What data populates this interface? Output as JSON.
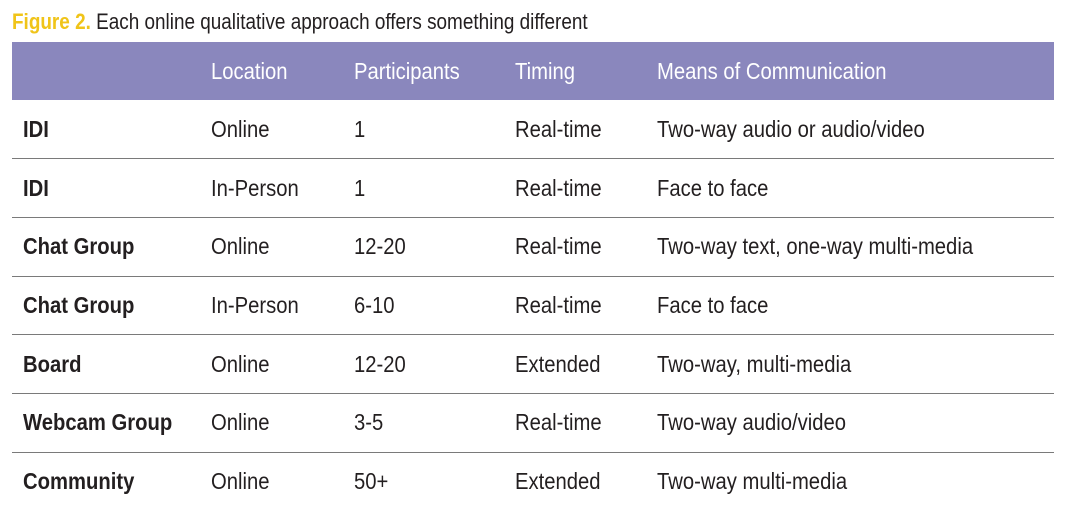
{
  "caption": {
    "label": "Figure 2.",
    "text": " Each online qualitative approach offers something different"
  },
  "colors": {
    "header_bg": "#8a87bd",
    "figure_label": "#f0c419"
  },
  "table": {
    "columns": [
      "",
      "Location",
      "Participants",
      "Timing",
      "Means of Communication"
    ],
    "rows": [
      [
        "IDI",
        "Online",
        "1",
        "Real-time",
        "Two-way audio or audio/video"
      ],
      [
        "IDI",
        "In-Person",
        "1",
        "Real-time",
        "Face to face"
      ],
      [
        "Chat Group",
        "Online",
        "12-20",
        "Real-time",
        "Two-way text, one-way multi-media"
      ],
      [
        "Chat Group",
        "In-Person",
        "6-10",
        "Real-time",
        "Face to face"
      ],
      [
        "Board",
        "Online",
        "12-20",
        "Extended",
        "Two-way, multi-media"
      ],
      [
        "Webcam Group",
        "Online",
        "3-5",
        "Real-time",
        "Two-way audio/video"
      ],
      [
        "Community",
        "Online",
        "50+",
        "Extended",
        "Two-way multi-media"
      ]
    ]
  }
}
